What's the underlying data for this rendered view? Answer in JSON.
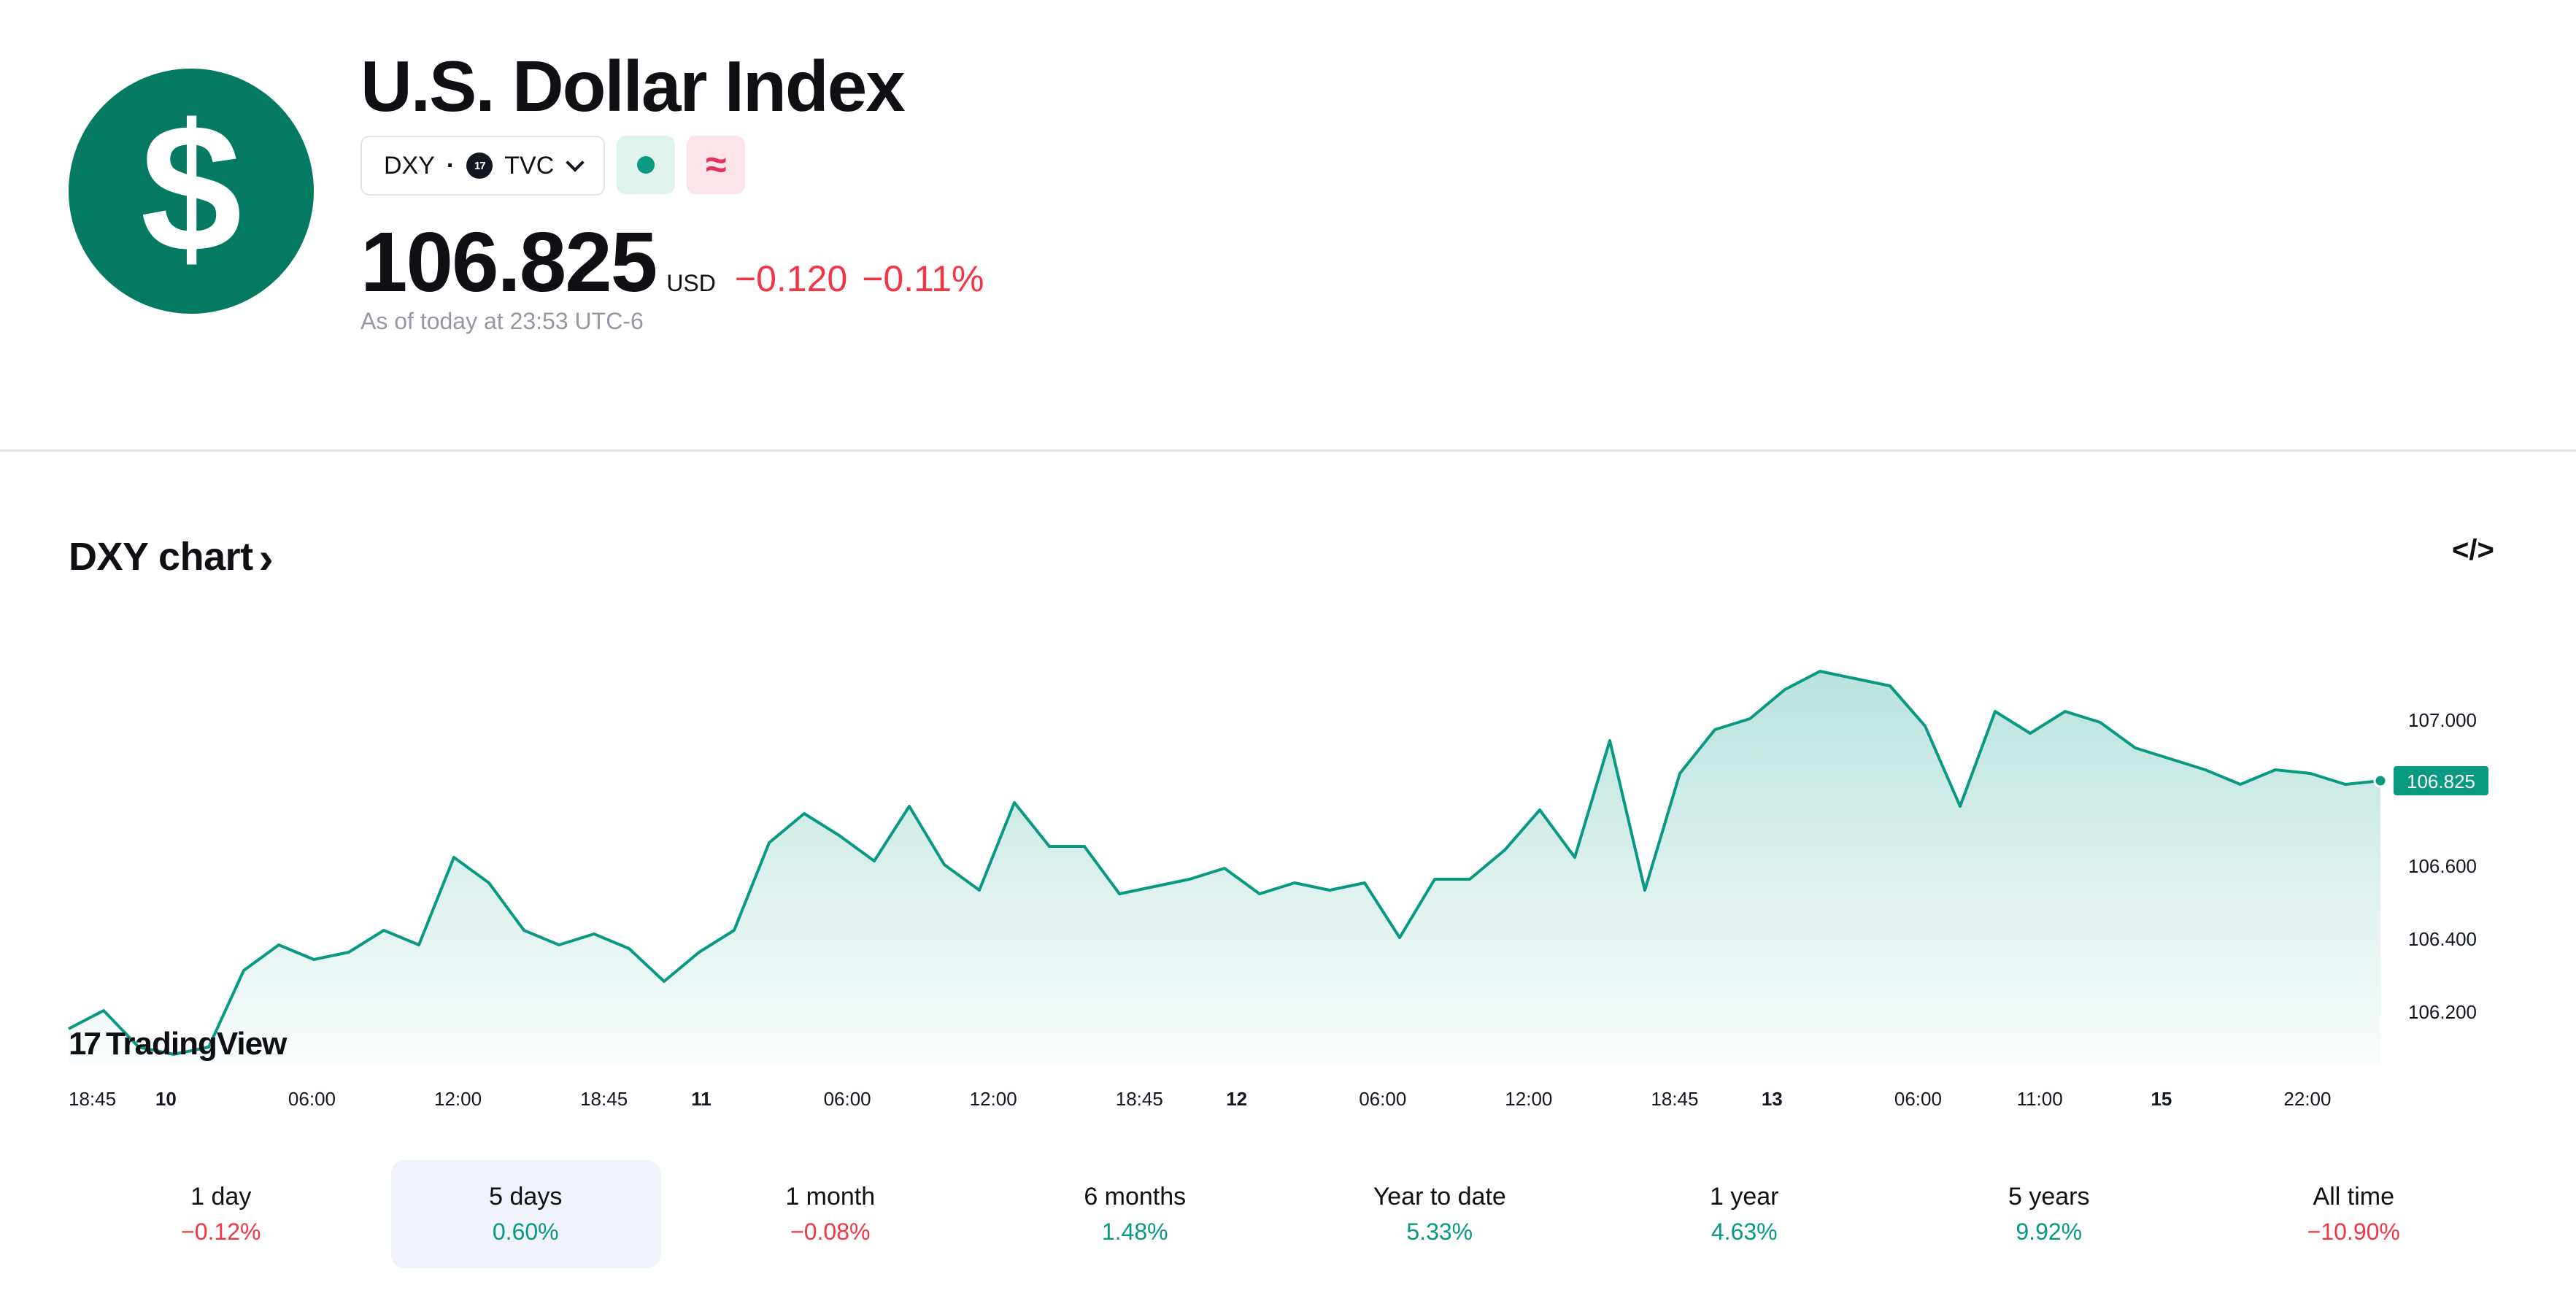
{
  "header": {
    "logo_symbol": "$",
    "title": "U.S. Dollar Index",
    "symbol": "DXY",
    "exchange": "TVC",
    "price": "106.825",
    "currency": "USD",
    "change": "−0.120",
    "change_percent": "−0.11%",
    "as_of": "As of today at 23:53 UTC-6"
  },
  "chart_section": {
    "title": "DXY chart",
    "logo": "TradingView",
    "icons": [
      "dollar-logo-icon",
      "chevron-down-icon",
      "market-status-icon",
      "approx-icon",
      "chevron-right-icon",
      "embed-code-icon"
    ],
    "colors": {
      "line": "#089981",
      "negative": "#f23645",
      "positive": "#089981",
      "brand": "#057a63"
    }
  },
  "chart_data": {
    "type": "area",
    "ylim": [
      106.05,
      107.25
    ],
    "yticks": [
      107.0,
      106.6,
      106.4,
      106.2
    ],
    "ytick_labels": [
      "107.000",
      "106.600",
      "106.400",
      "106.200"
    ],
    "last_value_label": "106.825",
    "xtick_labels": [
      {
        "label": "18:45",
        "bold": false,
        "pos": 0
      },
      {
        "label": "10",
        "bold": true,
        "pos": 2
      },
      {
        "label": "06:00",
        "bold": false,
        "pos": 5
      },
      {
        "label": "12:00",
        "bold": false,
        "pos": 8
      },
      {
        "label": "18:45",
        "bold": false,
        "pos": 11
      },
      {
        "label": "11",
        "bold": true,
        "pos": 13
      },
      {
        "label": "06:00",
        "bold": false,
        "pos": 16
      },
      {
        "label": "12:00",
        "bold": false,
        "pos": 19
      },
      {
        "label": "18:45",
        "bold": false,
        "pos": 22
      },
      {
        "label": "12",
        "bold": true,
        "pos": 24
      },
      {
        "label": "06:00",
        "bold": false,
        "pos": 27
      },
      {
        "label": "12:00",
        "bold": false,
        "pos": 30
      },
      {
        "label": "18:45",
        "bold": false,
        "pos": 33
      },
      {
        "label": "13",
        "bold": true,
        "pos": 35
      },
      {
        "label": "06:00",
        "bold": false,
        "pos": 38
      },
      {
        "label": "11:00",
        "bold": false,
        "pos": 40.5
      },
      {
        "label": "15",
        "bold": true,
        "pos": 43
      },
      {
        "label": "22:00",
        "bold": false,
        "pos": 46
      }
    ],
    "x_max": 47.5,
    "values": [
      106.15,
      106.2,
      106.1,
      106.08,
      106.1,
      106.31,
      106.38,
      106.34,
      106.36,
      106.42,
      106.38,
      106.62,
      106.55,
      106.42,
      106.38,
      106.41,
      106.37,
      106.28,
      106.36,
      106.42,
      106.66,
      106.74,
      106.68,
      106.61,
      106.76,
      106.6,
      106.53,
      106.77,
      106.65,
      106.65,
      106.52,
      106.54,
      106.56,
      106.59,
      106.52,
      106.55,
      106.53,
      106.55,
      106.4,
      106.56,
      106.56,
      106.64,
      106.75,
      106.62,
      106.94,
      106.53,
      106.85,
      106.97,
      107.0,
      107.08,
      107.13,
      107.11,
      107.09,
      106.98,
      106.76,
      107.02,
      106.96,
      107.02,
      106.99,
      106.92,
      106.89,
      106.86,
      106.82,
      106.86,
      106.85,
      106.82,
      106.83
    ]
  },
  "ranges": [
    {
      "label": "1 day",
      "value": "−0.12%",
      "sign": "neg",
      "active": false
    },
    {
      "label": "5 days",
      "value": "0.60%",
      "sign": "pos",
      "active": true
    },
    {
      "label": "1 month",
      "value": "−0.08%",
      "sign": "neg",
      "active": false
    },
    {
      "label": "6 months",
      "value": "1.48%",
      "sign": "pos",
      "active": false
    },
    {
      "label": "Year to date",
      "value": "5.33%",
      "sign": "pos",
      "active": false
    },
    {
      "label": "1 year",
      "value": "4.63%",
      "sign": "pos",
      "active": false
    },
    {
      "label": "5 years",
      "value": "9.92%",
      "sign": "pos",
      "active": false
    },
    {
      "label": "All time",
      "value": "−10.90%",
      "sign": "neg",
      "active": false
    }
  ]
}
